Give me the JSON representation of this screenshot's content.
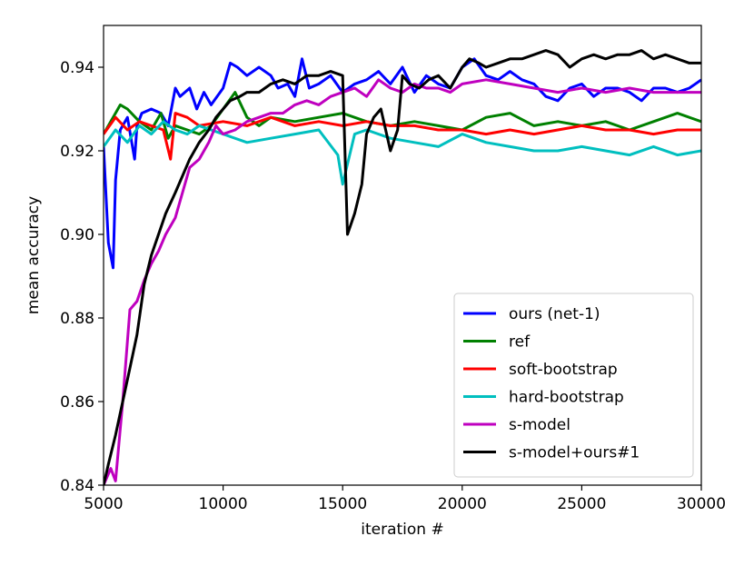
{
  "chart_data": {
    "type": "line",
    "title": "",
    "xlabel": "iteration #",
    "ylabel": "mean accuracy",
    "xlim": [
      5000,
      30000
    ],
    "ylim": [
      0.84,
      0.95
    ],
    "xticks": [
      5000,
      10000,
      15000,
      20000,
      25000,
      30000
    ],
    "xtick_labels": [
      "5000",
      "10000",
      "15000",
      "20000",
      "25000",
      "30000"
    ],
    "yticks": [
      0.84,
      0.86,
      0.88,
      0.9,
      0.92,
      0.94
    ],
    "ytick_labels": [
      "0.84",
      "0.86",
      "0.88",
      "0.90",
      "0.92",
      "0.94"
    ],
    "grid": false,
    "legend_position": "lower-right",
    "series": [
      {
        "name": "ours (net-1)",
        "color": "#0000ff",
        "x": [
          5000,
          5200,
          5400,
          5500,
          5700,
          6000,
          6300,
          6400,
          6600,
          7000,
          7400,
          7700,
          8000,
          8200,
          8600,
          8900,
          9200,
          9500,
          10000,
          10300,
          10600,
          11000,
          11500,
          12000,
          12300,
          12700,
          13000,
          13300,
          13600,
          14000,
          14500,
          15000,
          15500,
          16000,
          16500,
          17000,
          17500,
          18000,
          18500,
          19000,
          19500,
          20000,
          20500,
          21000,
          21500,
          22000,
          22500,
          23000,
          23500,
          24000,
          24500,
          25000,
          25500,
          26000,
          26500,
          27000,
          27500,
          28000,
          28500,
          29000,
          29500,
          30000
        ],
        "values": [
          0.921,
          0.898,
          0.892,
          0.913,
          0.925,
          0.928,
          0.918,
          0.926,
          0.929,
          0.93,
          0.929,
          0.926,
          0.935,
          0.933,
          0.935,
          0.93,
          0.934,
          0.931,
          0.935,
          0.941,
          0.94,
          0.938,
          0.94,
          0.938,
          0.935,
          0.936,
          0.933,
          0.942,
          0.935,
          0.936,
          0.938,
          0.934,
          0.936,
          0.937,
          0.939,
          0.936,
          0.94,
          0.934,
          0.938,
          0.936,
          0.935,
          0.94,
          0.942,
          0.938,
          0.937,
          0.939,
          0.937,
          0.936,
          0.933,
          0.932,
          0.935,
          0.936,
          0.933,
          0.935,
          0.935,
          0.934,
          0.932,
          0.935,
          0.935,
          0.934,
          0.935,
          0.937
        ]
      },
      {
        "name": "ref",
        "color": "#008000",
        "x": [
          5000,
          5300,
          5700,
          6000,
          6500,
          7000,
          7400,
          7700,
          8000,
          8500,
          9000,
          9500,
          10000,
          10500,
          11000,
          11500,
          12000,
          13000,
          14000,
          15000,
          16000,
          17000,
          18000,
          19000,
          20000,
          21000,
          22000,
          23000,
          24000,
          25000,
          26000,
          27000,
          28000,
          29000,
          30000
        ],
        "values": [
          0.924,
          0.927,
          0.931,
          0.93,
          0.927,
          0.925,
          0.929,
          0.923,
          0.926,
          0.925,
          0.924,
          0.926,
          0.93,
          0.934,
          0.928,
          0.926,
          0.928,
          0.927,
          0.928,
          0.929,
          0.927,
          0.926,
          0.927,
          0.926,
          0.925,
          0.928,
          0.929,
          0.926,
          0.927,
          0.926,
          0.927,
          0.925,
          0.927,
          0.929,
          0.927
        ]
      },
      {
        "name": "soft-bootstrap",
        "color": "#ff0000",
        "x": [
          5000,
          5500,
          6000,
          6500,
          7000,
          7500,
          7800,
          8000,
          8500,
          9000,
          10000,
          11000,
          12000,
          13000,
          14000,
          15000,
          16000,
          17000,
          18000,
          19000,
          20000,
          21000,
          22000,
          23000,
          24000,
          25000,
          26000,
          27000,
          28000,
          29000,
          30000
        ],
        "values": [
          0.924,
          0.928,
          0.925,
          0.927,
          0.926,
          0.925,
          0.918,
          0.929,
          0.928,
          0.926,
          0.927,
          0.926,
          0.928,
          0.926,
          0.927,
          0.926,
          0.927,
          0.926,
          0.926,
          0.925,
          0.925,
          0.924,
          0.925,
          0.924,
          0.925,
          0.926,
          0.925,
          0.925,
          0.924,
          0.925,
          0.925
        ]
      },
      {
        "name": "hard-bootstrap",
        "color": "#00bfbf",
        "x": [
          5000,
          5500,
          6000,
          6500,
          7000,
          7500,
          8000,
          8500,
          9000,
          10000,
          11000,
          12000,
          13000,
          14000,
          14800,
          15000,
          15500,
          16000,
          17000,
          18000,
          19000,
          20000,
          21000,
          22000,
          23000,
          24000,
          25000,
          26000,
          27000,
          28000,
          29000,
          30000
        ],
        "values": [
          0.921,
          0.925,
          0.922,
          0.926,
          0.924,
          0.927,
          0.925,
          0.924,
          0.926,
          0.924,
          0.922,
          0.923,
          0.924,
          0.925,
          0.919,
          0.912,
          0.924,
          0.925,
          0.923,
          0.922,
          0.921,
          0.924,
          0.922,
          0.921,
          0.92,
          0.92,
          0.921,
          0.92,
          0.919,
          0.921,
          0.919,
          0.92
        ]
      },
      {
        "name": "s-model",
        "color": "#bf00bf",
        "x": [
          5000,
          5300,
          5500,
          5800,
          6100,
          6400,
          6700,
          7000,
          7300,
          7600,
          8000,
          8300,
          8600,
          9000,
          9400,
          9700,
          10000,
          10500,
          11000,
          11500,
          12000,
          12500,
          13000,
          13500,
          14000,
          14500,
          15000,
          15500,
          16000,
          16500,
          17000,
          17500,
          18000,
          18500,
          19000,
          19500,
          20000,
          21000,
          22000,
          23000,
          24000,
          25000,
          26000,
          27000,
          28000,
          29000,
          30000
        ],
        "values": [
          0.84,
          0.844,
          0.841,
          0.86,
          0.882,
          0.884,
          0.889,
          0.893,
          0.896,
          0.9,
          0.904,
          0.91,
          0.916,
          0.918,
          0.922,
          0.926,
          0.924,
          0.925,
          0.927,
          0.928,
          0.929,
          0.929,
          0.931,
          0.932,
          0.931,
          0.933,
          0.934,
          0.935,
          0.933,
          0.937,
          0.935,
          0.934,
          0.936,
          0.935,
          0.935,
          0.934,
          0.936,
          0.937,
          0.936,
          0.935,
          0.934,
          0.935,
          0.934,
          0.935,
          0.934,
          0.934,
          0.934
        ]
      },
      {
        "name": "s-model+ours#1",
        "color": "#000000",
        "x": [
          5000,
          5200,
          5500,
          5800,
          6100,
          6400,
          6700,
          7000,
          7300,
          7600,
          8000,
          8300,
          8600,
          9000,
          9400,
          9700,
          10000,
          10300,
          10700,
          11000,
          11500,
          12000,
          12500,
          13000,
          13500,
          14000,
          14500,
          15000,
          15200,
          15500,
          15800,
          16000,
          16300,
          16600,
          17000,
          17300,
          17500,
          17800,
          18200,
          18600,
          19000,
          19500,
          20000,
          20300,
          20700,
          21000,
          21500,
          22000,
          22500,
          23000,
          23500,
          24000,
          24500,
          25000,
          25500,
          26000,
          26500,
          27000,
          27500,
          28000,
          28500,
          29000,
          29500,
          30000
        ],
        "values": [
          0.84,
          0.845,
          0.852,
          0.86,
          0.868,
          0.876,
          0.888,
          0.895,
          0.9,
          0.905,
          0.91,
          0.914,
          0.918,
          0.922,
          0.925,
          0.928,
          0.93,
          0.932,
          0.933,
          0.934,
          0.934,
          0.936,
          0.937,
          0.936,
          0.938,
          0.938,
          0.939,
          0.938,
          0.9,
          0.905,
          0.912,
          0.924,
          0.928,
          0.93,
          0.92,
          0.925,
          0.938,
          0.936,
          0.935,
          0.937,
          0.938,
          0.935,
          0.94,
          0.942,
          0.941,
          0.94,
          0.941,
          0.942,
          0.942,
          0.943,
          0.944,
          0.943,
          0.94,
          0.942,
          0.943,
          0.942,
          0.943,
          0.943,
          0.944,
          0.942,
          0.943,
          0.942,
          0.941,
          0.941
        ]
      }
    ]
  }
}
